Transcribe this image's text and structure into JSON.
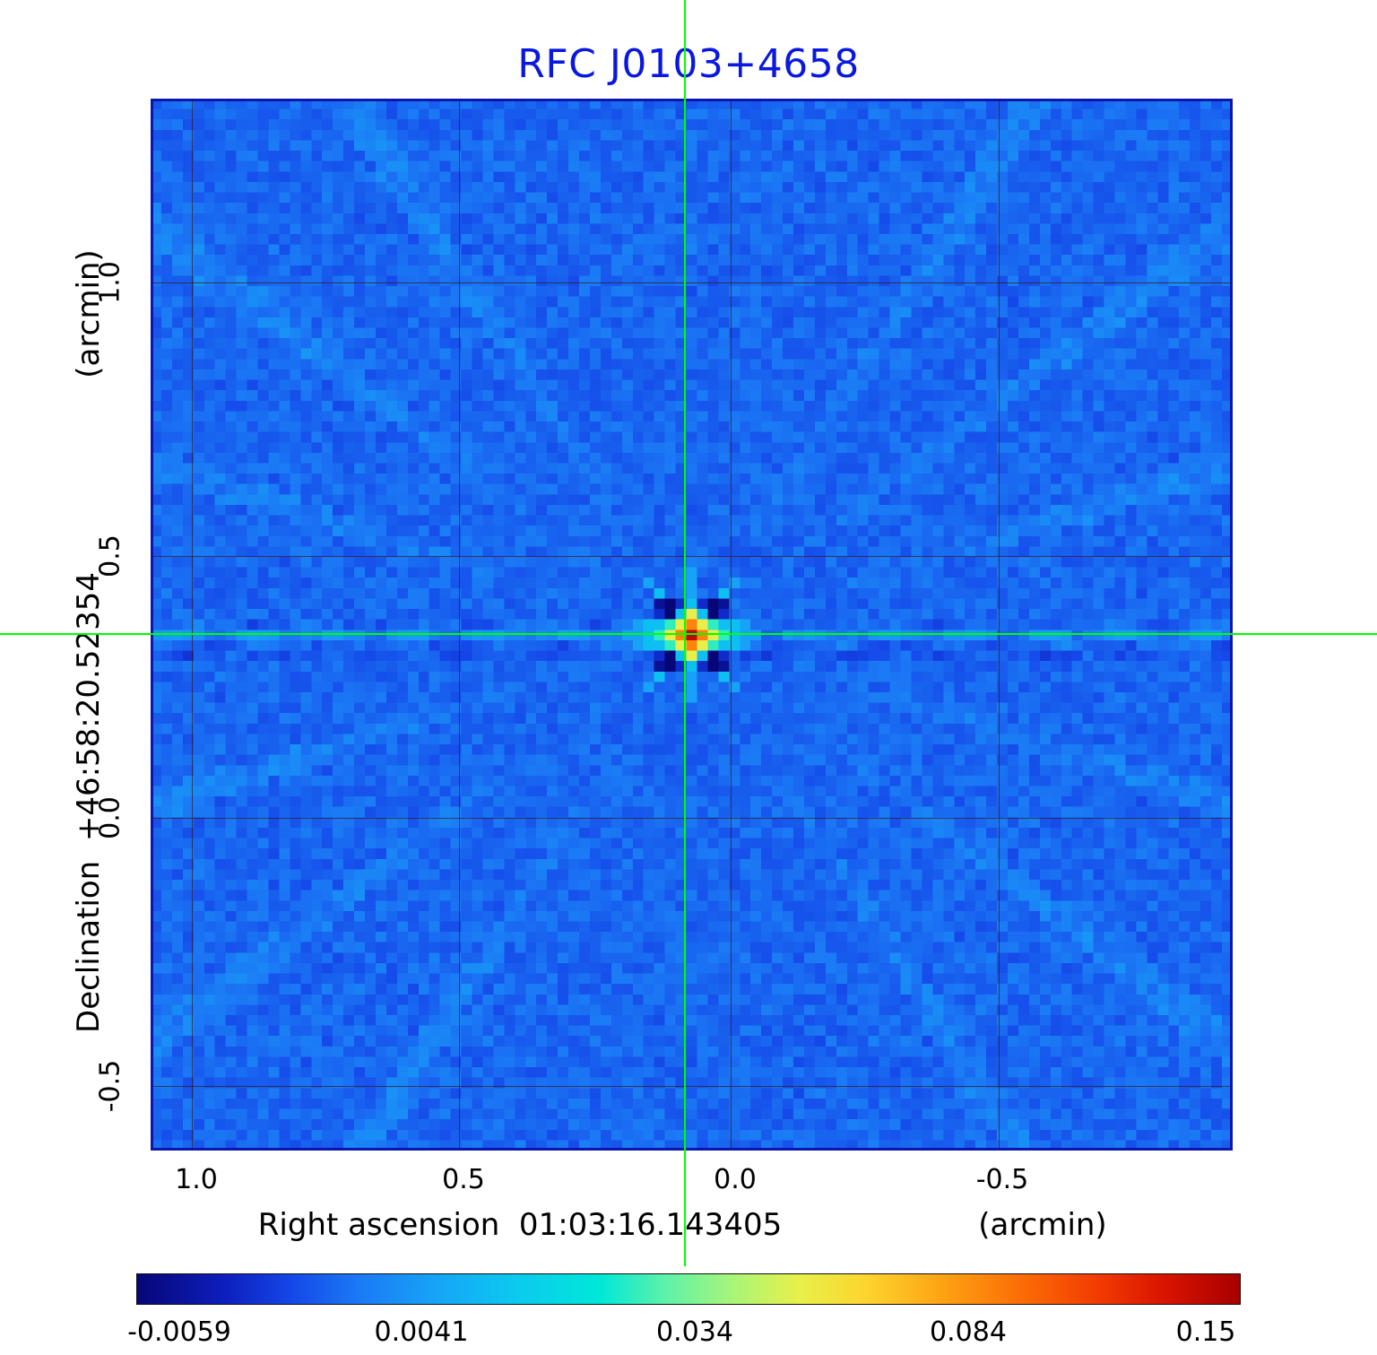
{
  "chart_data": {
    "type": "heatmap",
    "title": "RFC J0103+4658",
    "xlabel": "Right ascension  01:03:16.143405",
    "x_unit": "(arcmin)",
    "ylabel": "Declination  +46:58:20.52354",
    "y_unit": "(arcmin)",
    "x_tick_labels": [
      "1.0",
      "0.5",
      "0.0",
      "-0.5"
    ],
    "y_tick_labels": [
      "1.0",
      "0.5",
      "0.0",
      "-0.5"
    ],
    "x_range_arcmin": [
      1.25,
      -0.85
    ],
    "y_range_arcmin": [
      -0.65,
      1.25
    ],
    "colorbar": {
      "tick_labels": [
        "-0.0059",
        "0.0041",
        "0.034",
        "0.084",
        "0.15"
      ],
      "tick_values": [
        -0.0059,
        0.0041,
        0.034,
        0.084,
        0.15
      ]
    },
    "colormap": [
      [
        0.0,
        "#060677"
      ],
      [
        0.08,
        "#0d1fbe"
      ],
      [
        0.14,
        "#1547e8"
      ],
      [
        0.2,
        "#1b79f5"
      ],
      [
        0.27,
        "#17a3f7"
      ],
      [
        0.34,
        "#0cc8f0"
      ],
      [
        0.42,
        "#00e8d8"
      ],
      [
        0.48,
        "#5ff2a8"
      ],
      [
        0.54,
        "#a8f578"
      ],
      [
        0.6,
        "#e8f04a"
      ],
      [
        0.66,
        "#fdd52f"
      ],
      [
        0.73,
        "#fda313"
      ],
      [
        0.8,
        "#fb6e07"
      ],
      [
        0.87,
        "#f23c02"
      ],
      [
        0.93,
        "#da1400"
      ],
      [
        1.0,
        "#a80000"
      ]
    ],
    "background_value": 0.0012,
    "peak_value": 0.15,
    "map_size": 101,
    "source_center": [
      50,
      51
    ],
    "source_matrix": [
      [
        null,
        null,
        null,
        null,
        null,
        null,
        0.006,
        null,
        null,
        null,
        null,
        null,
        null
      ],
      [
        null,
        null,
        0.006,
        null,
        null,
        null,
        0.006,
        null,
        null,
        null,
        0.006,
        null,
        null
      ],
      [
        null,
        null,
        null,
        0.013,
        null,
        null,
        0.006,
        null,
        null,
        0.013,
        null,
        null,
        null
      ],
      [
        null,
        null,
        null,
        -0.0045,
        -0.0059,
        -0.002,
        0.013,
        -0.002,
        -0.0059,
        -0.0045,
        null,
        null,
        null
      ],
      [
        null,
        null,
        null,
        -0.002,
        -0.0059,
        0.013,
        0.055,
        0.013,
        -0.0059,
        -0.002,
        null,
        null,
        null
      ],
      [
        null,
        0.006,
        0.013,
        0.013,
        0.028,
        0.055,
        0.09,
        0.055,
        0.028,
        0.013,
        0.013,
        0.006,
        null
      ],
      [
        0.006,
        0.006,
        0.013,
        0.028,
        0.055,
        0.09,
        0.142,
        0.09,
        0.055,
        0.028,
        0.013,
        0.006,
        0.006
      ],
      [
        null,
        0.006,
        0.013,
        0.013,
        0.028,
        0.055,
        0.09,
        0.055,
        0.028,
        0.013,
        0.013,
        0.006,
        null
      ],
      [
        null,
        null,
        null,
        -0.002,
        -0.0059,
        0.013,
        0.055,
        0.013,
        -0.0059,
        -0.002,
        null,
        null,
        null
      ],
      [
        null,
        null,
        null,
        -0.0045,
        -0.0059,
        -0.002,
        0.013,
        -0.002,
        -0.0059,
        -0.0045,
        null,
        null,
        null
      ],
      [
        null,
        null,
        null,
        0.013,
        null,
        null,
        0.006,
        null,
        null,
        0.013,
        null,
        null,
        null
      ],
      [
        null,
        null,
        0.006,
        null,
        null,
        null,
        0.006,
        null,
        null,
        null,
        0.006,
        null,
        null
      ],
      [
        null,
        null,
        null,
        null,
        null,
        null,
        0.006,
        null,
        null,
        null,
        null,
        null,
        null
      ]
    ],
    "title_color": "#0a18dd",
    "crosshair_color": "#00ff00",
    "grid_color": "rgba(55,25,25,0.9)",
    "frame_color": "#0a16ae",
    "legend_position": "bottom-colorbar",
    "grid": true
  }
}
